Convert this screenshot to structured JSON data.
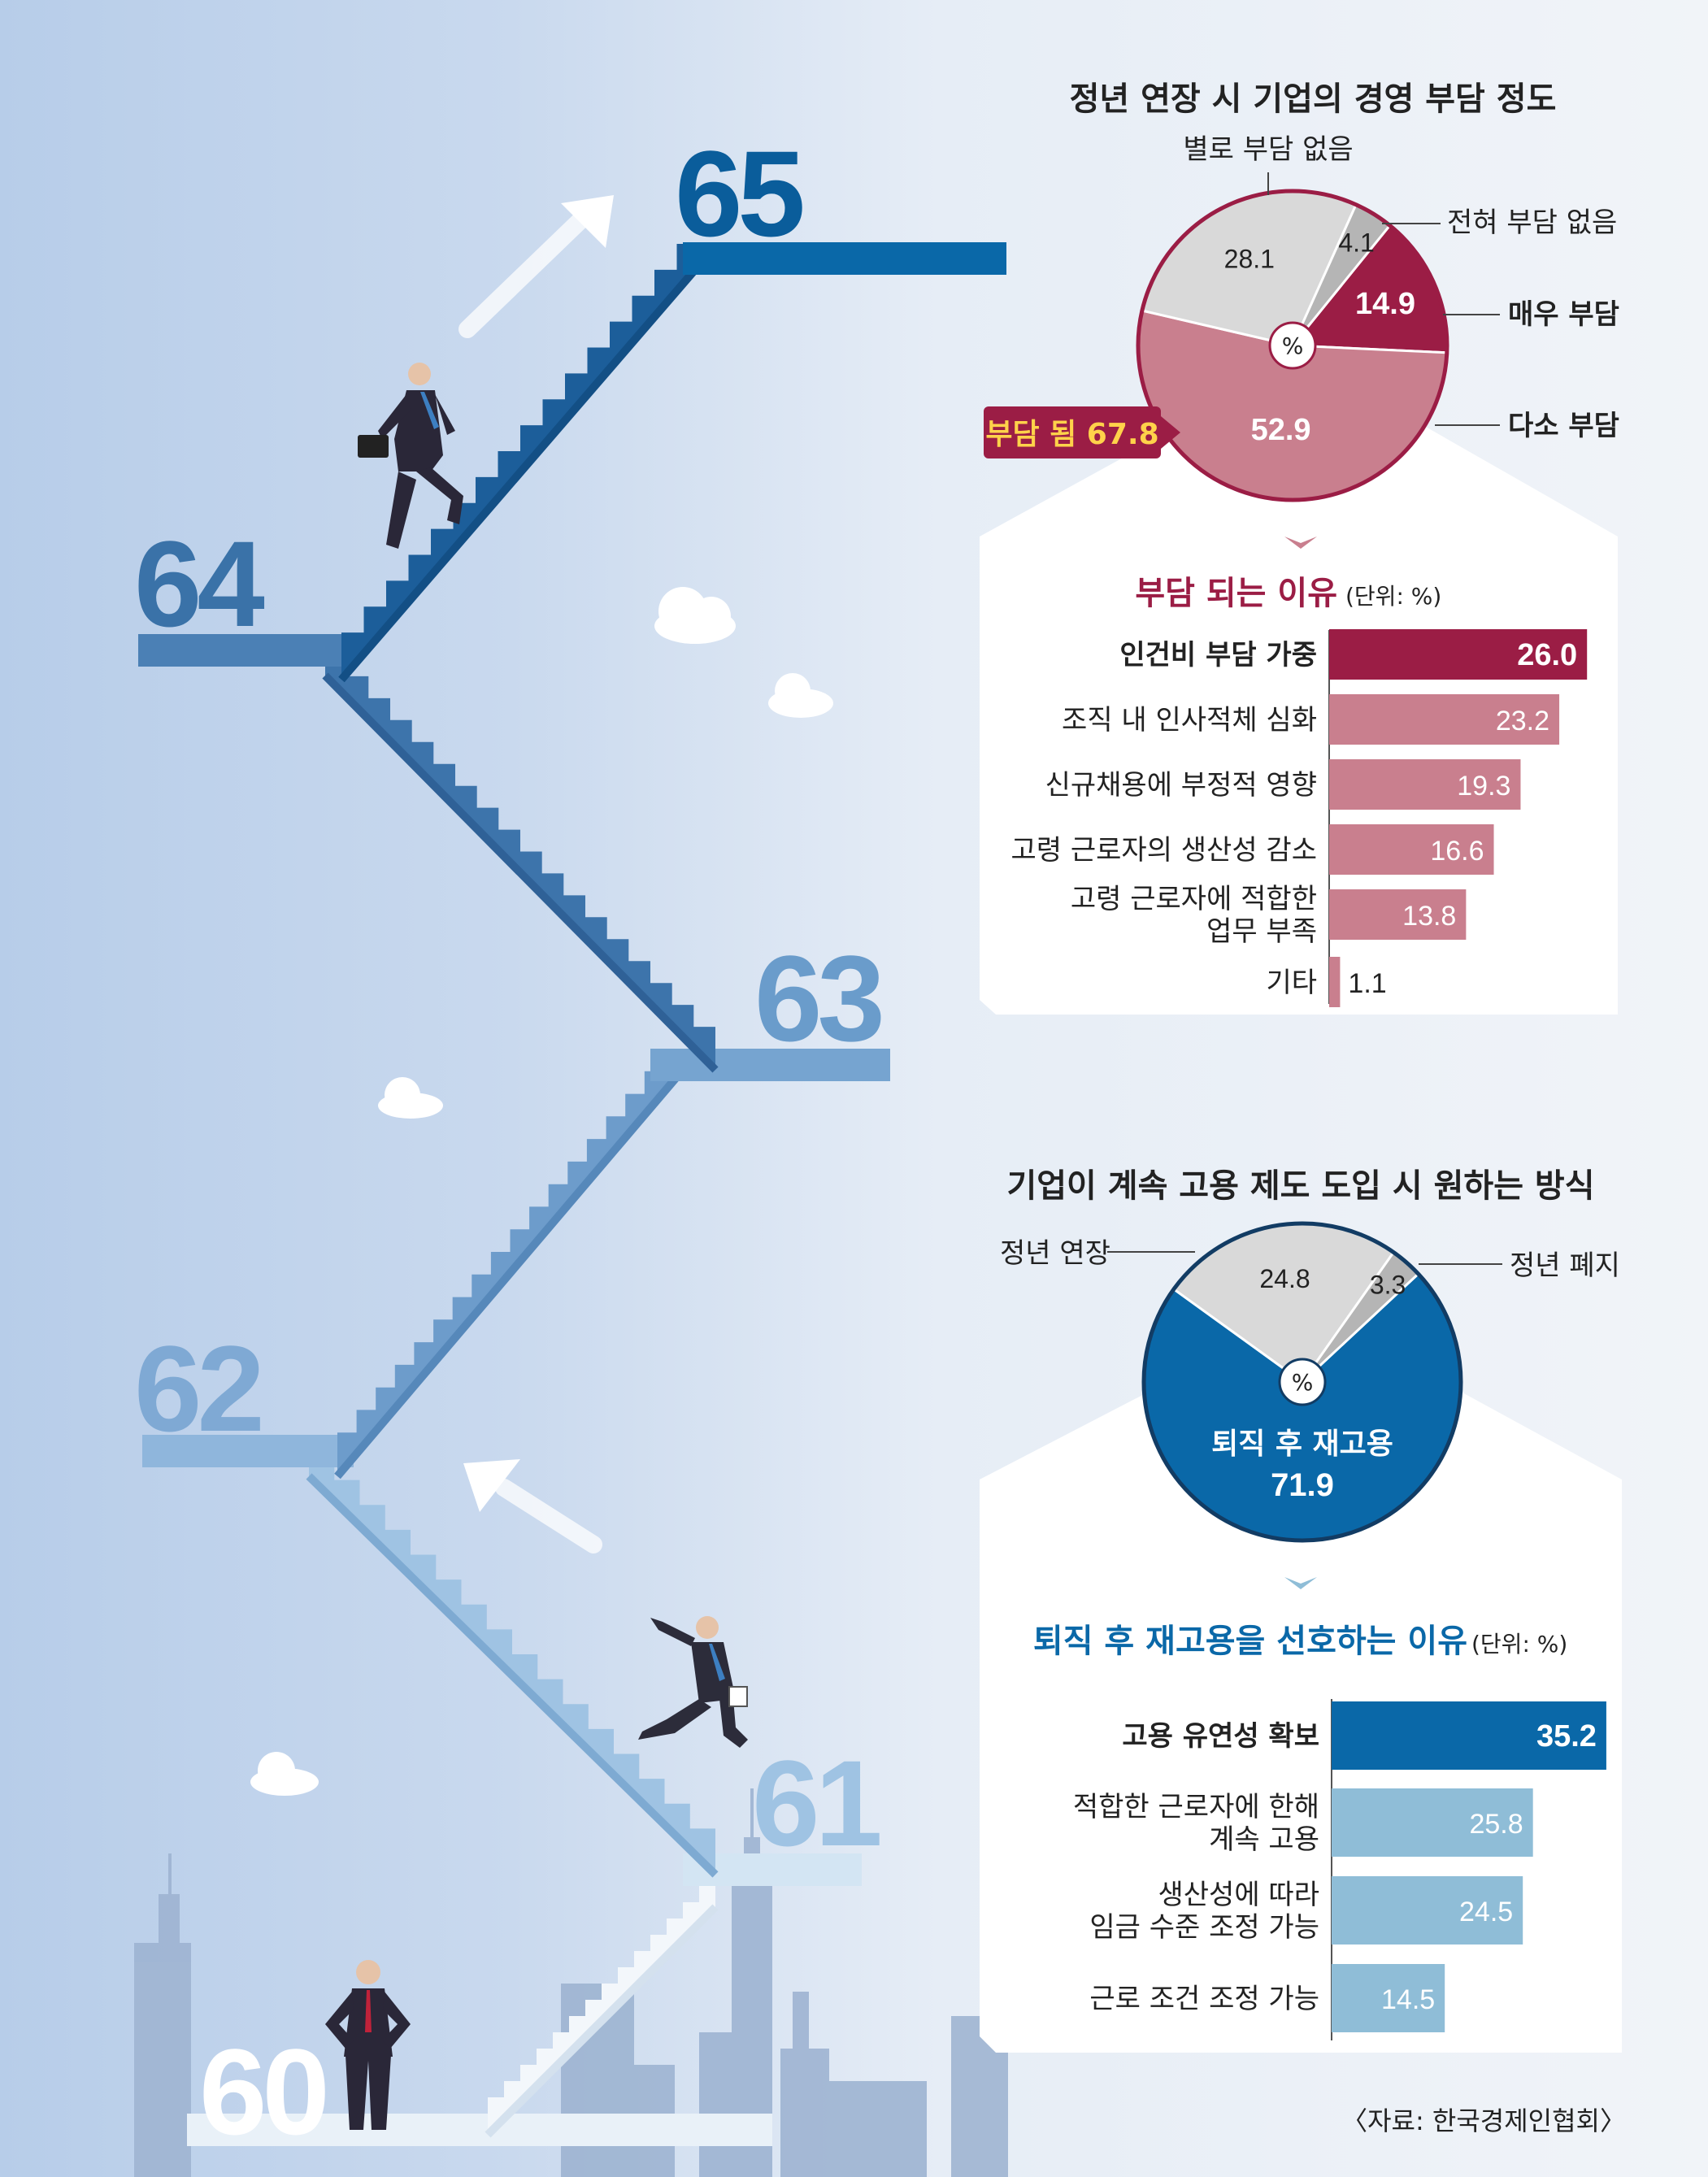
{
  "stair_numbers": [
    "60",
    "61",
    "62",
    "63",
    "64",
    "65"
  ],
  "source": "〈자료: 한국경제인협회〉",
  "colors": {
    "burden_dark": "#9b1d45",
    "burden_mid": "#c97f8e",
    "gray": "#d9d9d9",
    "gray_dark": "#b5b5b5",
    "blue_dark": "#0a68a8",
    "blue_light": "#8fbdd7",
    "panel": "#ffffff"
  },
  "chart_data": [
    {
      "type": "pie",
      "title": "정년 연장 시 기업의 경영 부담 정도",
      "center_label": "%",
      "slices": [
        {
          "name": "매우 부담",
          "value": 14.9
        },
        {
          "name": "다소 부담",
          "value": 52.9
        },
        {
          "name": "별로 부담 없음",
          "value": 28.1
        },
        {
          "name": "전혀 부담 없음",
          "value": 4.1
        }
      ],
      "callout": "부담 됨 67.8"
    },
    {
      "type": "bar",
      "title": "부담 되는 이유",
      "unit": "(단위: %)",
      "categories": [
        "인건비 부담 가중",
        "조직 내 인사적체 심화",
        "신규채용에 부정적 영향",
        "고령 근로자의 생산성 감소",
        "고령 근로자에 적합한 업무 부족",
        "기타"
      ],
      "category_lines": [
        [
          "인건비 부담 가중"
        ],
        [
          "조직 내 인사적체 심화"
        ],
        [
          "신규채용에 부정적 영향"
        ],
        [
          "고령 근로자의 생산성 감소"
        ],
        [
          "고령 근로자에 적합한",
          "업무 부족"
        ],
        [
          "기타"
        ]
      ],
      "values": [
        26.0,
        23.2,
        19.3,
        16.6,
        13.8,
        1.1
      ],
      "value_labels": [
        "26.0",
        "23.2",
        "19.3",
        "16.6",
        "13.8",
        "1.1"
      ]
    },
    {
      "type": "pie",
      "title": "기업이 계속 고용 제도 도입 시 원하는 방식",
      "center_label": "%",
      "slices": [
        {
          "name": "퇴직 후 재고용",
          "value": 71.9
        },
        {
          "name": "정년 연장",
          "value": 24.8
        },
        {
          "name": "정년 폐지",
          "value": 3.3
        }
      ]
    },
    {
      "type": "bar",
      "title": "퇴직 후 재고용을 선호하는 이유",
      "unit": "(단위: %)",
      "categories": [
        "고용 유연성 확보",
        "적합한 근로자에 한해 계속 고용",
        "생산성에 따라 임금 수준 조정 가능",
        "근로 조건 조정 가능"
      ],
      "category_lines": [
        [
          "고용 유연성 확보"
        ],
        [
          "적합한 근로자에 한해",
          "계속 고용"
        ],
        [
          "생산성에 따라",
          "임금 수준 조정 가능"
        ],
        [
          "근로 조건 조정 가능"
        ]
      ],
      "values": [
        35.2,
        25.8,
        24.5,
        14.5
      ],
      "value_labels": [
        "35.2",
        "25.8",
        "24.5",
        "14.5"
      ]
    }
  ]
}
